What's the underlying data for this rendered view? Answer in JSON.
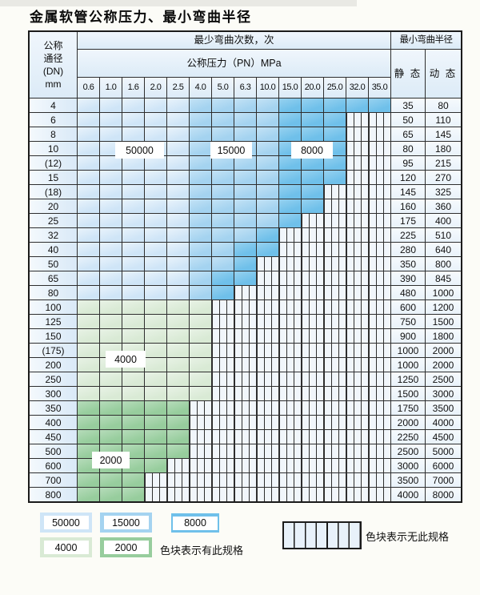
{
  "title": "金属软管公称压力、最小弯曲半径",
  "table": {
    "corner": {
      "line1": "公称",
      "line2": "通径",
      "line3": "(DN)",
      "line4": "mm"
    },
    "bend_cycles_header": "最少弯曲次数，次",
    "pressure_header": "公称压力（PN）MPa",
    "radius_header": "最小弯曲半径",
    "static_header": "静 态",
    "dynamic_header": "动 态",
    "pressure_columns": [
      "0.6",
      "1.0",
      "1.6",
      "2.0",
      "2.5",
      "4.0",
      "5.0",
      "6.3",
      "10.0",
      "15.0",
      "20.0",
      "25.0",
      "32.0",
      "35.0"
    ],
    "zone_legend_key": {
      "L": "50000",
      "M": "15000",
      "D": "8000",
      "G": "4000",
      "E": "2000",
      "H": "no-spec"
    },
    "rows": [
      {
        "dn": "4",
        "zones": "LLLLLMMMMDDDDD",
        "static": "35",
        "dynamic": "80"
      },
      {
        "dn": "6",
        "zones": "LLLLLMMMMDDDHH",
        "static": "50",
        "dynamic": "110"
      },
      {
        "dn": "8",
        "zones": "LLLLLMMMMDDDHH",
        "static": "65",
        "dynamic": "145"
      },
      {
        "dn": "10",
        "zones": "LLLLLMMMMDDDHH",
        "static": "80",
        "dynamic": "180"
      },
      {
        "dn": "(12)",
        "zones": "LLLLLMMMMDDDHH",
        "static": "95",
        "dynamic": "215"
      },
      {
        "dn": "15",
        "zones": "LLLLLMMMMDDDHH",
        "static": "120",
        "dynamic": "270"
      },
      {
        "dn": "(18)",
        "zones": "LLLLLMMMMDDHHH",
        "static": "145",
        "dynamic": "325"
      },
      {
        "dn": "20",
        "zones": "LLLLLMMMMDDHHH",
        "static": "160",
        "dynamic": "360"
      },
      {
        "dn": "25",
        "zones": "LLLLLMMMMDHHHH",
        "static": "175",
        "dynamic": "400"
      },
      {
        "dn": "32",
        "zones": "LLLLLMMMDHHHHH",
        "static": "225",
        "dynamic": "510"
      },
      {
        "dn": "40",
        "zones": "LLLLLMMDDHHHHH",
        "static": "280",
        "dynamic": "640"
      },
      {
        "dn": "50",
        "zones": "LLLLLMMDHHHHHH",
        "static": "350",
        "dynamic": "800"
      },
      {
        "dn": "65",
        "zones": "LLLLLMDDHHHHHH",
        "static": "390",
        "dynamic": "845"
      },
      {
        "dn": "80",
        "zones": "LLLLLMDHHHHHHH",
        "static": "480",
        "dynamic": "1000"
      },
      {
        "dn": "100",
        "zones": "GGGGGGHHHHHHHH",
        "static": "600",
        "dynamic": "1200"
      },
      {
        "dn": "125",
        "zones": "GGGGGGHHHHHHHH",
        "static": "750",
        "dynamic": "1500"
      },
      {
        "dn": "150",
        "zones": "GGGGGGHHHHHHHH",
        "static": "900",
        "dynamic": "1800"
      },
      {
        "dn": "(175)",
        "zones": "GGGGGGHHHHHHHH",
        "static": "1000",
        "dynamic": "2000"
      },
      {
        "dn": "200",
        "zones": "GGGGGGHHHHHHHH",
        "static": "1000",
        "dynamic": "2000"
      },
      {
        "dn": "250",
        "zones": "GGGGGGHHHHHHHH",
        "static": "1250",
        "dynamic": "2500"
      },
      {
        "dn": "300",
        "zones": "GGGGGGHHHHHHHH",
        "static": "1500",
        "dynamic": "3000"
      },
      {
        "dn": "350",
        "zones": "EEEEEHHHHHHHHH",
        "static": "1750",
        "dynamic": "3500"
      },
      {
        "dn": "400",
        "zones": "EEEEEHHHHHHHHH",
        "static": "2000",
        "dynamic": "4000"
      },
      {
        "dn": "450",
        "zones": "EEEEEHHHHHHHHH",
        "static": "2250",
        "dynamic": "4500"
      },
      {
        "dn": "500",
        "zones": "EEEEEHHHHHHHHH",
        "static": "2500",
        "dynamic": "5000"
      },
      {
        "dn": "600",
        "zones": "EEEEHHHHHHHHHH",
        "static": "3000",
        "dynamic": "6000"
      },
      {
        "dn": "700",
        "zones": "EEEHHHHHHHHHHH",
        "static": "3500",
        "dynamic": "7000"
      },
      {
        "dn": "800",
        "zones": "EEEHHHHHHHHHHH",
        "static": "4000",
        "dynamic": "8000"
      }
    ]
  },
  "zone_labels": [
    {
      "text": "50000"
    },
    {
      "text": "15000"
    },
    {
      "text": "8000"
    },
    {
      "text": "4000"
    },
    {
      "text": "2000"
    }
  ],
  "legend": {
    "items": [
      {
        "label": "50000"
      },
      {
        "label": "15000"
      },
      {
        "label": "8000"
      },
      {
        "label": "4000"
      },
      {
        "label": "2000"
      }
    ],
    "present_note": "色块表示有此规格",
    "absent_note": "色块表示无此规格"
  },
  "colors": {
    "c50000": "#cfe5f7",
    "c15000": "#a4d3f0",
    "c8000": "#6fc0ea",
    "c4000": "#d9ead5",
    "c2000": "#97cd9d",
    "cnone": "#f1f6fb"
  }
}
